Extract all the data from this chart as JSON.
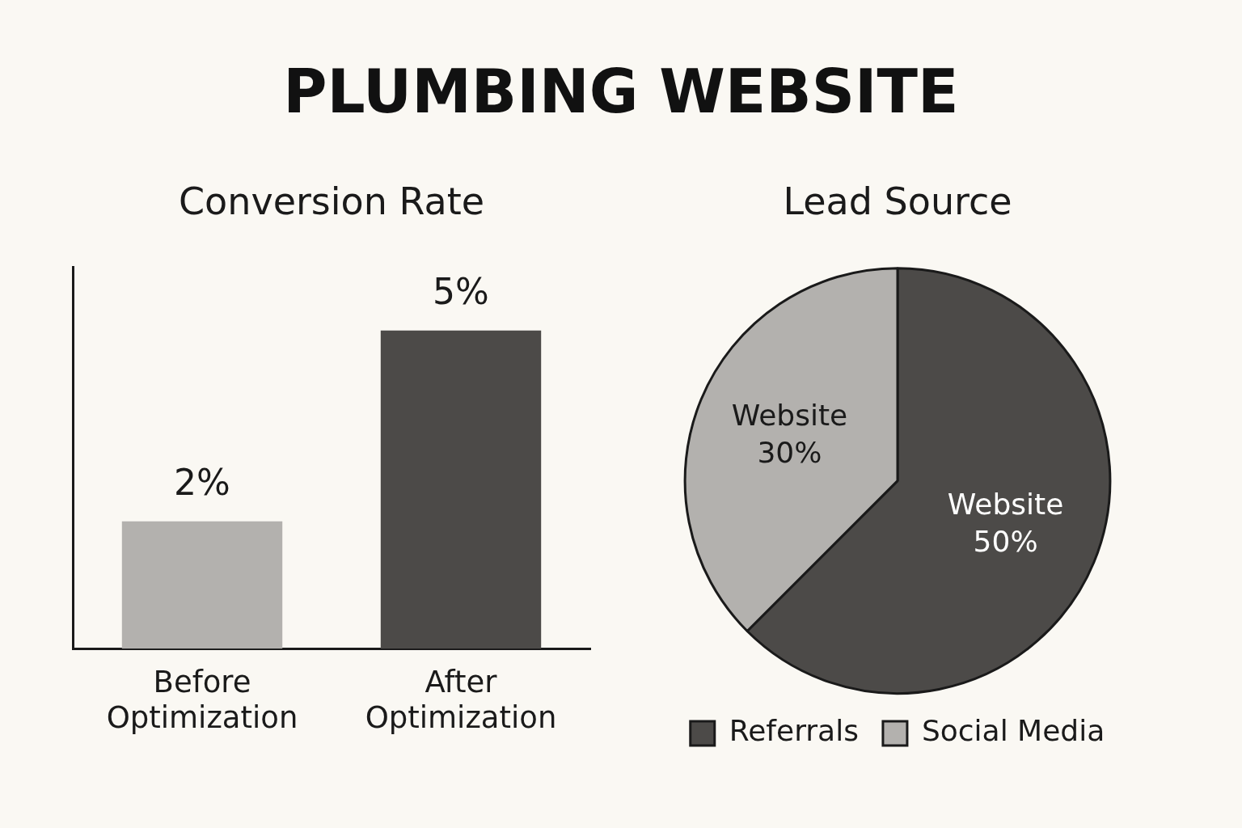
{
  "chart_data": [
    {
      "type": "other",
      "title": "PLUMBING WEBSITE"
    },
    {
      "type": "bar",
      "title": "Conversion Rate",
      "categories": [
        "Before Optimization",
        "After Optimization"
      ],
      "values": [
        2,
        5
      ],
      "colors": [
        "#b3b1ae",
        "#4c4a48"
      ],
      "value_labels": [
        "2%",
        "5%"
      ],
      "tick_labels": "x"
    },
    {
      "type": "pie",
      "title": "Lead Source",
      "categories": [
        "Referrals",
        "Social Media"
      ],
      "values": [
        50,
        30
      ],
      "colors": [
        "#4c4a48",
        "#b3b1ae"
      ],
      "value_labels": [
        "Website 50%",
        "Website 30%"
      ],
      "legend": "bottom"
    }
  ]
}
